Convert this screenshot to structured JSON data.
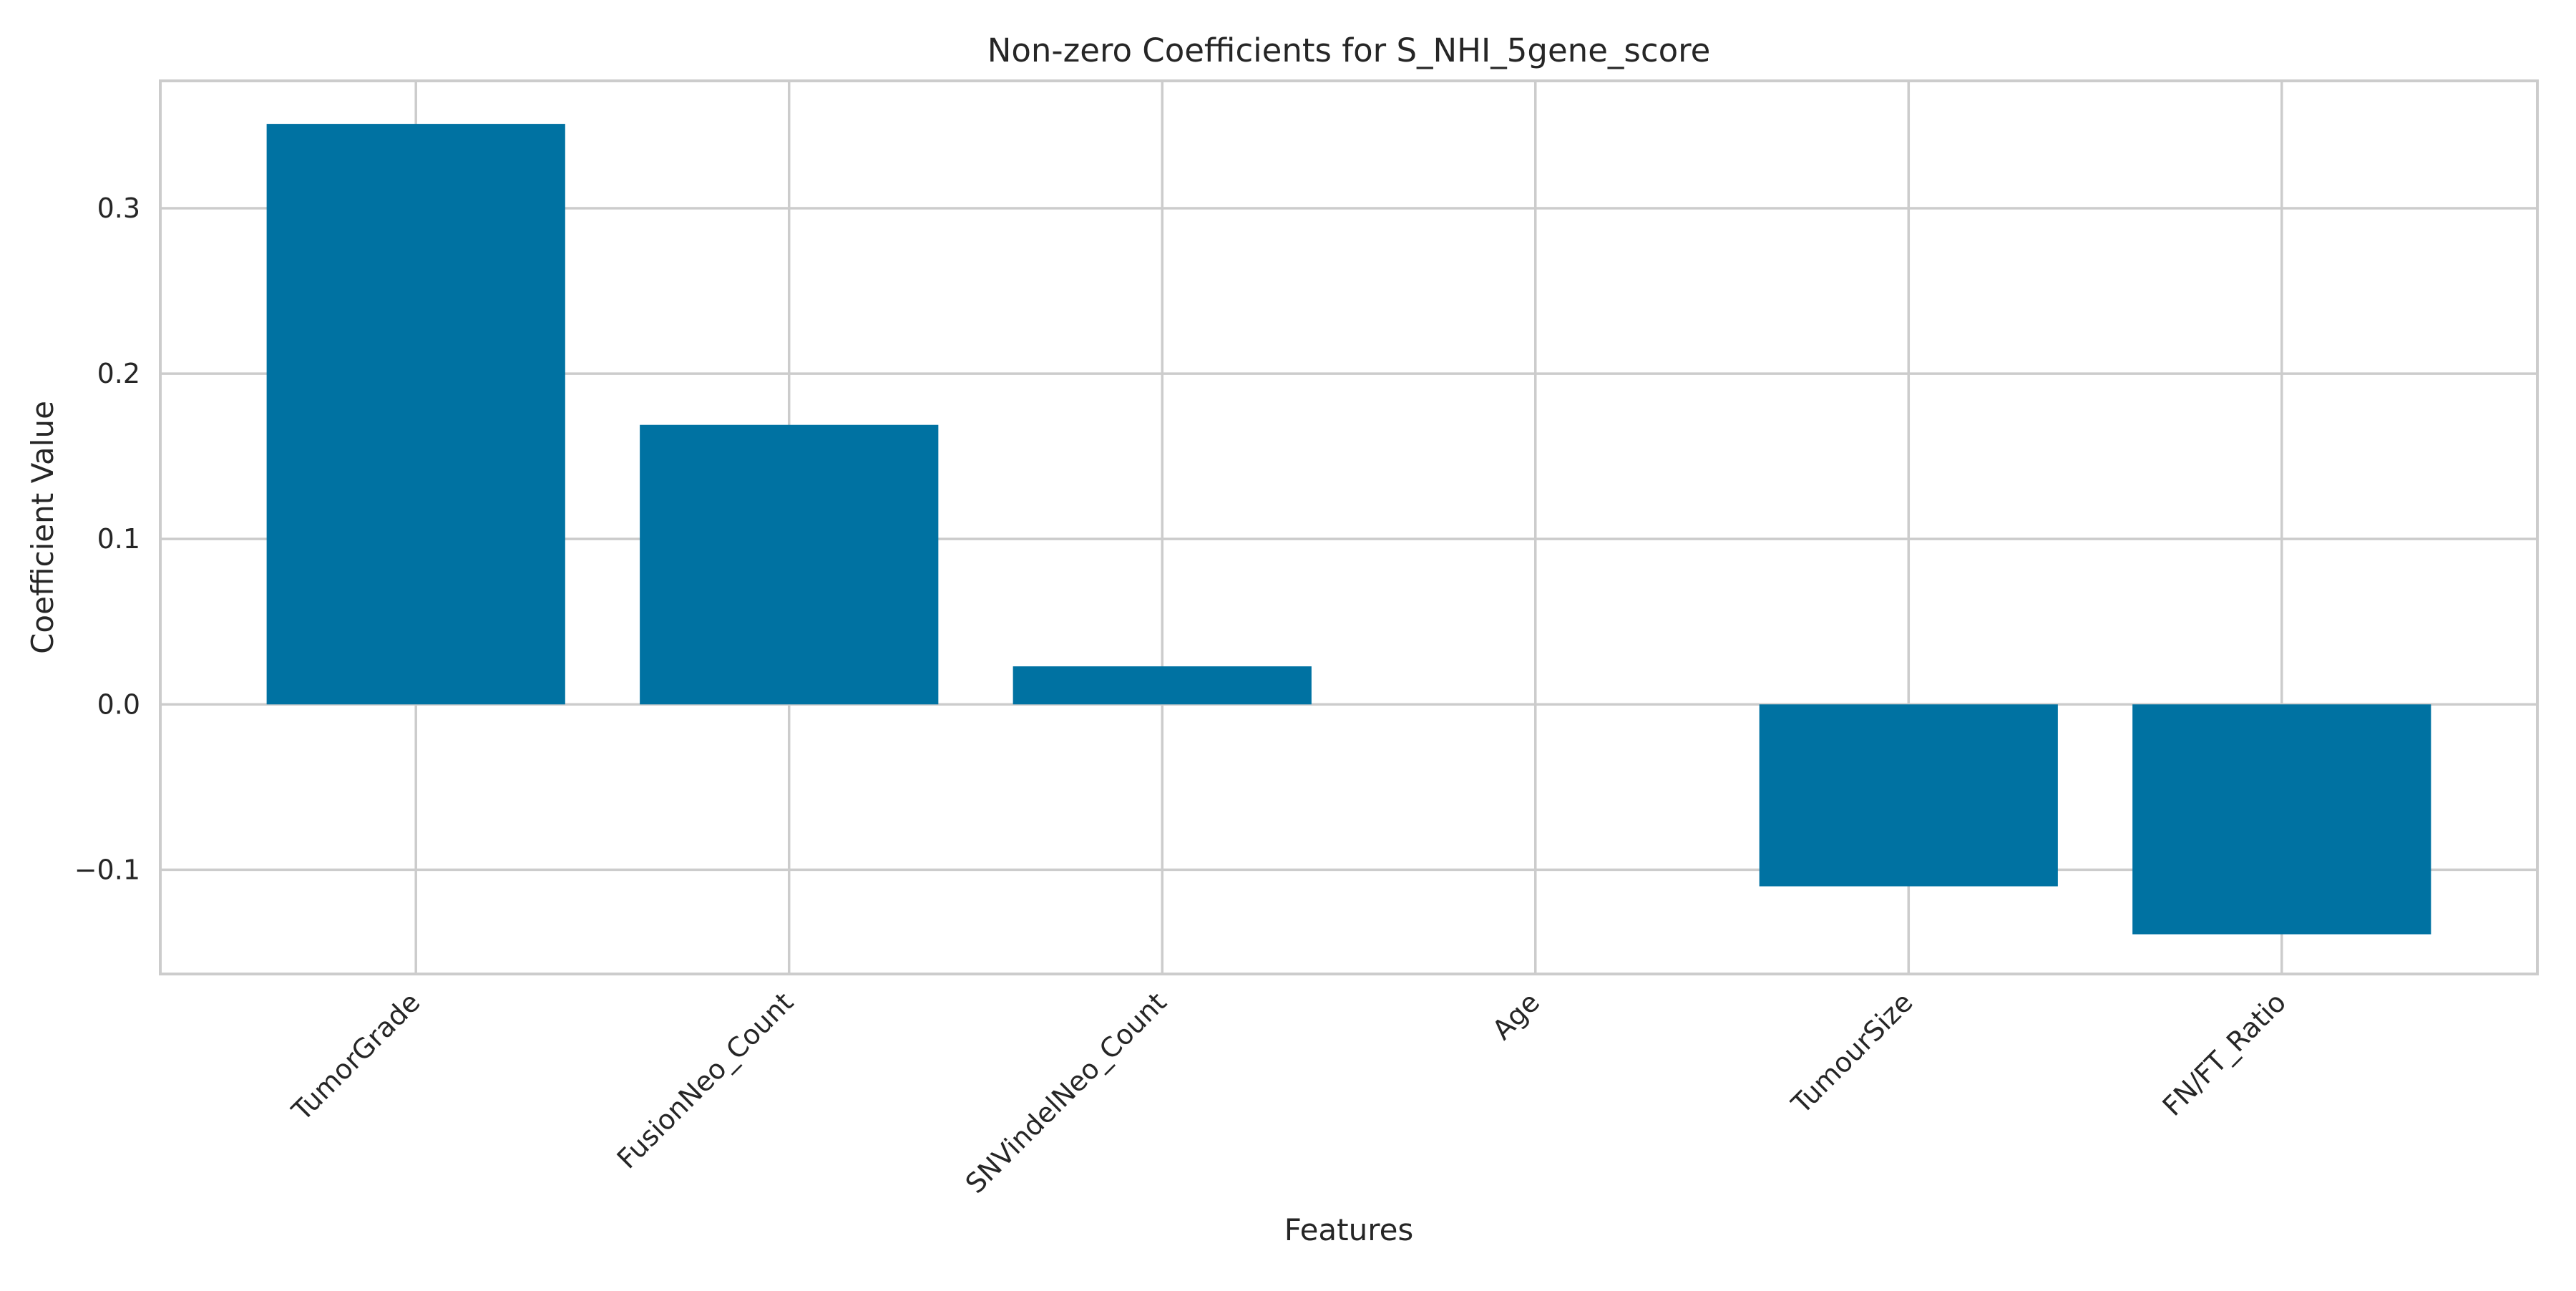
{
  "chart_data": {
    "type": "bar",
    "title": "Non-zero Coefficients for S_NHI_5gene_score",
    "xlabel": "Features",
    "ylabel": "Coefficient Value",
    "categories": [
      "TumorGrade",
      "FusionNeo_Count",
      "SNVindelNeo_Count",
      "Age",
      "TumourSize",
      "FN/FT_Ratio"
    ],
    "values": [
      0.351,
      0.169,
      0.023,
      0.0,
      -0.11,
      -0.139
    ],
    "ylim": [
      -0.163,
      0.377
    ],
    "yticks": [
      -0.1,
      0.0,
      0.1,
      0.2,
      0.3
    ],
    "ytick_labels": [
      "−0.1",
      "0.0",
      "0.1",
      "0.2",
      "0.3"
    ],
    "grid": true,
    "colors": {
      "bar": "#0072a2",
      "grid": "#cccccc",
      "spine": "#cccccc",
      "text": "#262626"
    }
  }
}
